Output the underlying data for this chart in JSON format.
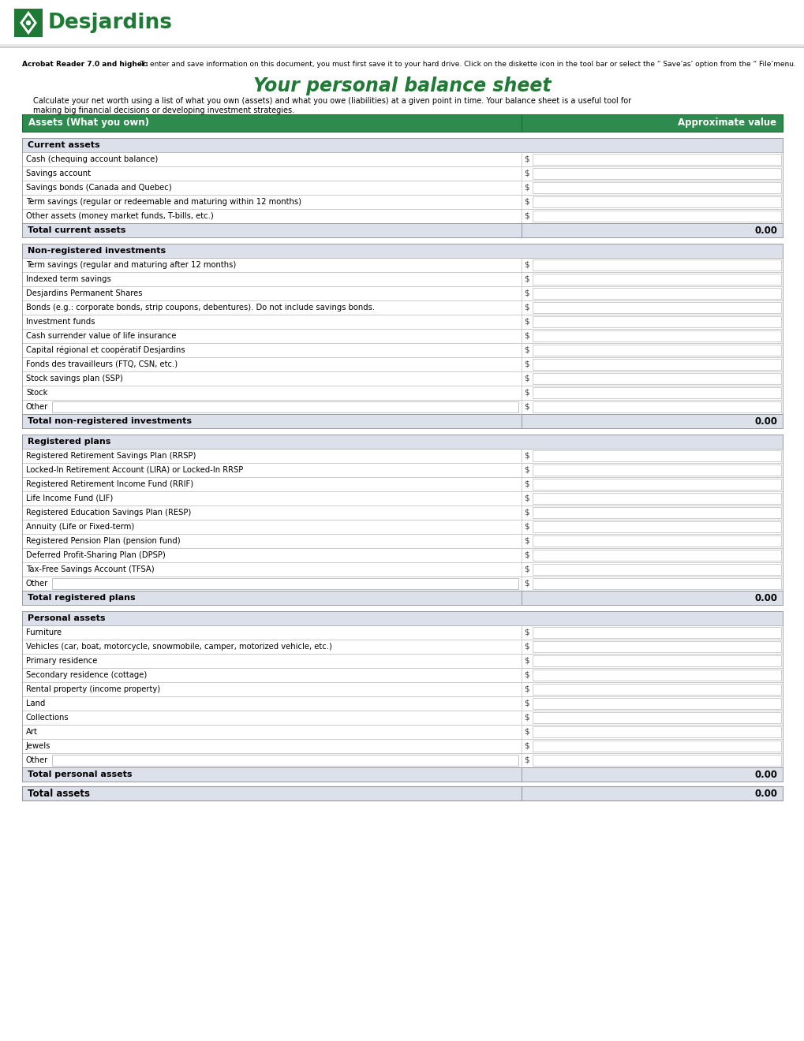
{
  "title": "Your personal balance sheet",
  "acrobat_bold": "Acrobat Reader 7.0 and higher:",
  "acrobat_rest": "  To enter and save information on this document, you must first save it to your hard drive. Click on the diskette icon in the tool bar or select the “ Save’as’ option from the “ File’menu.",
  "desc1": "Calculate your net worth using a list of what you own (assets) and what you owe (liabilities) at a given point in time. Your balance sheet is a useful tool for",
  "desc2": "making big financial decisions or developing investment strategies.",
  "header_bg": "#2E8B4F",
  "section_header_bg": "#DCE0EA",
  "total_row_bg": "#DCE0EA",
  "green_color": "#1E7A34",
  "logo_green": "#1E7A34",
  "main_header": [
    "Assets (What you own)",
    "Approximate value"
  ],
  "sections": [
    {
      "section_title": "Current assets",
      "rows": [
        "Cash (chequing account balance)",
        "Savings account",
        "Savings bonds (Canada and Quebec)",
        "Term savings (regular or redeemable and maturing within 12 months)",
        "Other assets (money market funds, T-bills, etc.)"
      ],
      "has_other_box": [
        false,
        false,
        false,
        false,
        false
      ],
      "total_label": "Total current assets",
      "total_value": "0.00"
    },
    {
      "section_title": "Non-registered investments",
      "rows": [
        "Term savings (regular and maturing after 12 months)",
        "Indexed term savings",
        "Desjardins Permanent Shares",
        "Bonds (e.g.: corporate bonds, strip coupons, debentures). Do not include savings bonds.",
        "Investment funds",
        "Cash surrender value of life insurance",
        "Capital régional et coopératif Desjardins",
        "Fonds des travailleurs (FTQ, CSN, etc.)",
        "Stock savings plan (SSP)",
        "Stock",
        "Other"
      ],
      "has_other_box": [
        false,
        false,
        false,
        false,
        false,
        false,
        false,
        false,
        false,
        false,
        true
      ],
      "total_label": "Total non-registered investments",
      "total_value": "0.00"
    },
    {
      "section_title": "Registered plans",
      "rows": [
        "Registered Retirement Savings Plan (RRSP)",
        "Locked-In Retirement Account (LIRA) or Locked-In RRSP",
        "Registered Retirement Income Fund (RRIF)",
        "Life Income Fund (LIF)",
        "Registered Education Savings Plan (RESP)",
        "Annuity (Life or Fixed-term)",
        "Registered Pension Plan (pension fund)",
        "Deferred Profit-Sharing Plan (DPSP)",
        "Tax-Free Savings Account (TFSA)",
        "Other"
      ],
      "has_other_box": [
        false,
        false,
        false,
        false,
        false,
        false,
        false,
        false,
        false,
        true
      ],
      "total_label": "Total registered plans",
      "total_value": "0.00"
    },
    {
      "section_title": "Personal assets",
      "rows": [
        "Furniture",
        "Vehicles (car, boat, motorcycle, snowmobile, camper, motorized vehicle, etc.)",
        "Primary residence",
        "Secondary residence (cottage)",
        "Rental property (income property)",
        "Land",
        "Collections",
        "Art",
        "Jewels",
        "Other"
      ],
      "has_other_box": [
        false,
        false,
        false,
        false,
        false,
        false,
        false,
        false,
        false,
        true
      ],
      "total_label": "Total personal assets",
      "total_value": "0.00"
    }
  ],
  "final_total_label": "Total assets",
  "final_total_value": "0.00"
}
